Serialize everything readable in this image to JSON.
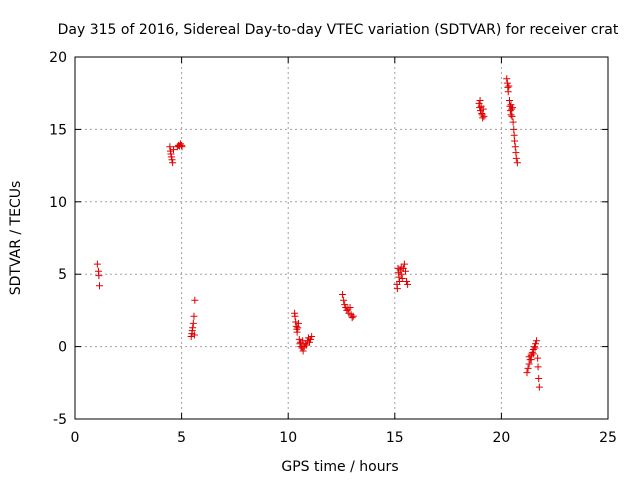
{
  "chart_data": {
    "type": "scatter",
    "title": "Day 315 of 2016, Sidereal Day-to-day VTEC variation (SDTVAR) for receiver crat",
    "xlabel": "GPS time / hours",
    "ylabel": "SDTVAR / TECUs",
    "xlim": [
      0,
      25
    ],
    "ylim": [
      -5,
      20
    ],
    "xticks": [
      0,
      5,
      10,
      15,
      20,
      25
    ],
    "yticks": [
      -5,
      0,
      5,
      10,
      15,
      20
    ],
    "xtick_labels": [
      "0",
      "5",
      "10",
      "15",
      "20",
      "25"
    ],
    "ytick_labels": [
      "-5",
      "0",
      "5",
      "10",
      "15",
      "20"
    ],
    "grid": true,
    "marker": "+",
    "color": "#e00000",
    "series": [
      {
        "name": "SDTVAR",
        "points": [
          [
            1.05,
            5.7
          ],
          [
            1.1,
            5.2
          ],
          [
            1.12,
            4.9
          ],
          [
            1.15,
            4.2
          ],
          [
            4.45,
            13.8
          ],
          [
            4.48,
            13.5
          ],
          [
            4.5,
            13.3
          ],
          [
            4.52,
            13.1
          ],
          [
            4.55,
            12.9
          ],
          [
            4.58,
            12.7
          ],
          [
            4.62,
            13.6
          ],
          [
            4.8,
            13.8
          ],
          [
            4.85,
            13.9
          ],
          [
            4.9,
            13.85
          ],
          [
            4.95,
            14.0
          ],
          [
            5.0,
            13.9
          ],
          [
            5.02,
            13.8
          ],
          [
            5.45,
            0.7
          ],
          [
            5.48,
            0.9
          ],
          [
            5.5,
            1.1
          ],
          [
            5.52,
            1.3
          ],
          [
            5.55,
            1.6
          ],
          [
            5.58,
            2.1
          ],
          [
            5.6,
            0.8
          ],
          [
            5.62,
            3.2
          ],
          [
            10.3,
            2.3
          ],
          [
            10.32,
            2.1
          ],
          [
            10.35,
            1.7
          ],
          [
            10.38,
            1.4
          ],
          [
            10.4,
            1.2
          ],
          [
            10.42,
            1.0
          ],
          [
            10.45,
            1.3
          ],
          [
            10.48,
            1.6
          ],
          [
            10.52,
            0.5
          ],
          [
            10.55,
            0.2
          ],
          [
            10.6,
            0.0
          ],
          [
            10.65,
            -0.1
          ],
          [
            10.7,
            -0.3
          ],
          [
            10.75,
            0.0
          ],
          [
            10.8,
            0.2
          ],
          [
            10.85,
            0.1
          ],
          [
            10.9,
            0.4
          ],
          [
            10.95,
            0.6
          ],
          [
            11.0,
            0.3
          ],
          [
            11.05,
            0.5
          ],
          [
            11.1,
            0.7
          ],
          [
            10.58,
            0.3
          ],
          [
            10.68,
            0.4
          ],
          [
            12.55,
            3.6
          ],
          [
            12.6,
            3.2
          ],
          [
            12.65,
            2.9
          ],
          [
            12.7,
            2.7
          ],
          [
            12.75,
            2.5
          ],
          [
            12.8,
            2.6
          ],
          [
            12.85,
            2.3
          ],
          [
            12.9,
            2.7
          ],
          [
            12.95,
            2.2
          ],
          [
            13.0,
            2.0
          ],
          [
            13.05,
            2.1
          ],
          [
            15.1,
            4.3
          ],
          [
            15.12,
            4.0
          ],
          [
            15.15,
            5.4
          ],
          [
            15.18,
            5.1
          ],
          [
            15.2,
            4.8
          ],
          [
            15.25,
            5.3
          ],
          [
            15.3,
            5.0
          ],
          [
            15.35,
            4.7
          ],
          [
            15.4,
            5.4
          ],
          [
            15.45,
            5.7
          ],
          [
            15.5,
            5.2
          ],
          [
            15.55,
            4.5
          ],
          [
            15.6,
            4.3
          ],
          [
            15.3,
            5.5
          ],
          [
            15.22,
            4.5
          ],
          [
            18.95,
            16.8
          ],
          [
            18.98,
            16.5
          ],
          [
            19.0,
            17.0
          ],
          [
            19.02,
            16.3
          ],
          [
            19.05,
            16.6
          ],
          [
            19.08,
            16.1
          ],
          [
            19.1,
            16.0
          ],
          [
            19.12,
            15.8
          ],
          [
            19.15,
            16.4
          ],
          [
            19.18,
            15.9
          ],
          [
            20.25,
            18.5
          ],
          [
            20.28,
            18.2
          ],
          [
            20.3,
            17.9
          ],
          [
            20.32,
            17.6
          ],
          [
            20.35,
            18.0
          ],
          [
            20.38,
            17.0
          ],
          [
            20.4,
            16.6
          ],
          [
            20.42,
            16.3
          ],
          [
            20.45,
            16.0
          ],
          [
            20.48,
            16.4
          ],
          [
            20.5,
            15.9
          ],
          [
            20.55,
            15.5
          ],
          [
            20.58,
            15.0
          ],
          [
            20.6,
            14.6
          ],
          [
            20.62,
            14.2
          ],
          [
            20.65,
            13.8
          ],
          [
            20.68,
            13.4
          ],
          [
            20.7,
            13.0
          ],
          [
            20.75,
            12.7
          ],
          [
            20.52,
            16.5
          ],
          [
            20.45,
            16.7
          ],
          [
            21.2,
            -1.8
          ],
          [
            21.25,
            -1.5
          ],
          [
            21.3,
            -1.2
          ],
          [
            21.35,
            -0.9
          ],
          [
            21.4,
            -0.6
          ],
          [
            21.45,
            -0.4
          ],
          [
            21.5,
            -0.2
          ],
          [
            21.55,
            0.0
          ],
          [
            21.6,
            0.2
          ],
          [
            21.65,
            0.4
          ],
          [
            21.7,
            -0.8
          ],
          [
            21.72,
            -1.4
          ],
          [
            21.75,
            -2.2
          ],
          [
            21.78,
            -2.8
          ],
          [
            21.3,
            -0.7
          ],
          [
            21.4,
            -0.9
          ],
          [
            21.5,
            -0.5
          ],
          [
            21.58,
            -0.1
          ]
        ]
      }
    ]
  }
}
